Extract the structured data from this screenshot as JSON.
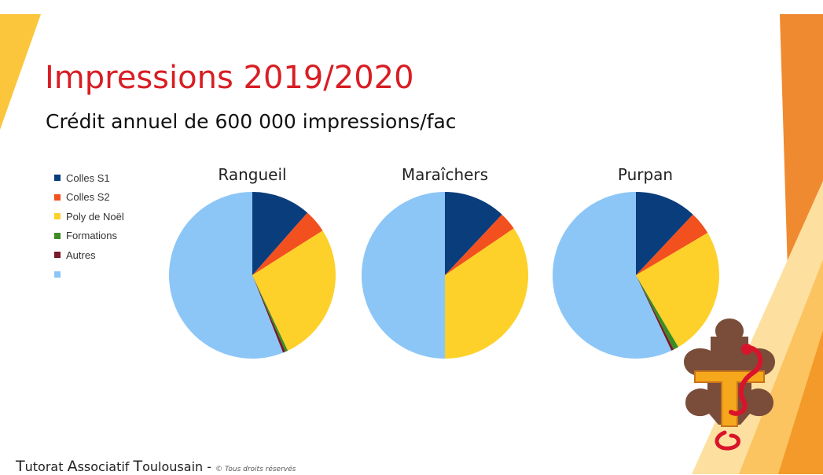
{
  "slide": {
    "title": "Impressions 2019/2020",
    "subtitle": "Crédit annuel de 600 000 impressions/fac"
  },
  "legend": {
    "items": [
      {
        "label": "Colles S1",
        "color": "#0a3d7c"
      },
      {
        "label": "Colles S2",
        "color": "#f2501e"
      },
      {
        "label": "Poly de Noël",
        "color": "#fdd12a"
      },
      {
        "label": "Formations",
        "color": "#3c8c24"
      },
      {
        "label": "Autres",
        "color": "#7a1a2a"
      },
      {
        "label": "",
        "color": "#8cc6f7"
      }
    ]
  },
  "footer": {
    "part1_initial": "T",
    "part1_rest": "utorat ",
    "part2_initial": "A",
    "part2_rest": "ssociatif ",
    "part3_initial": "T",
    "part3_rest": "oulousain",
    "dash": " - ",
    "copyright": "© Tous droits réservés"
  },
  "chart_data": [
    {
      "type": "pie",
      "title": "Rangueil",
      "labels": [
        "Colles S1",
        "Colles S2",
        "Poly de Noël",
        "Formations",
        "Autres",
        ""
      ],
      "values": [
        11.5,
        4.5,
        27,
        0.5,
        0.5,
        56
      ]
    },
    {
      "type": "pie",
      "title": "Maraîchers",
      "labels": [
        "Colles S1",
        "Colles S2",
        "Poly de Noël",
        "Formations",
        "Autres",
        ""
      ],
      "values": [
        12,
        3.5,
        34.5,
        0,
        0,
        50
      ]
    },
    {
      "type": "pie",
      "title": "Purpan",
      "labels": [
        "Colles S1",
        "Colles S2",
        "Poly de Noël",
        "Formations",
        "Autres",
        ""
      ],
      "values": [
        12,
        4.5,
        25,
        1,
        0.5,
        57
      ]
    }
  ]
}
